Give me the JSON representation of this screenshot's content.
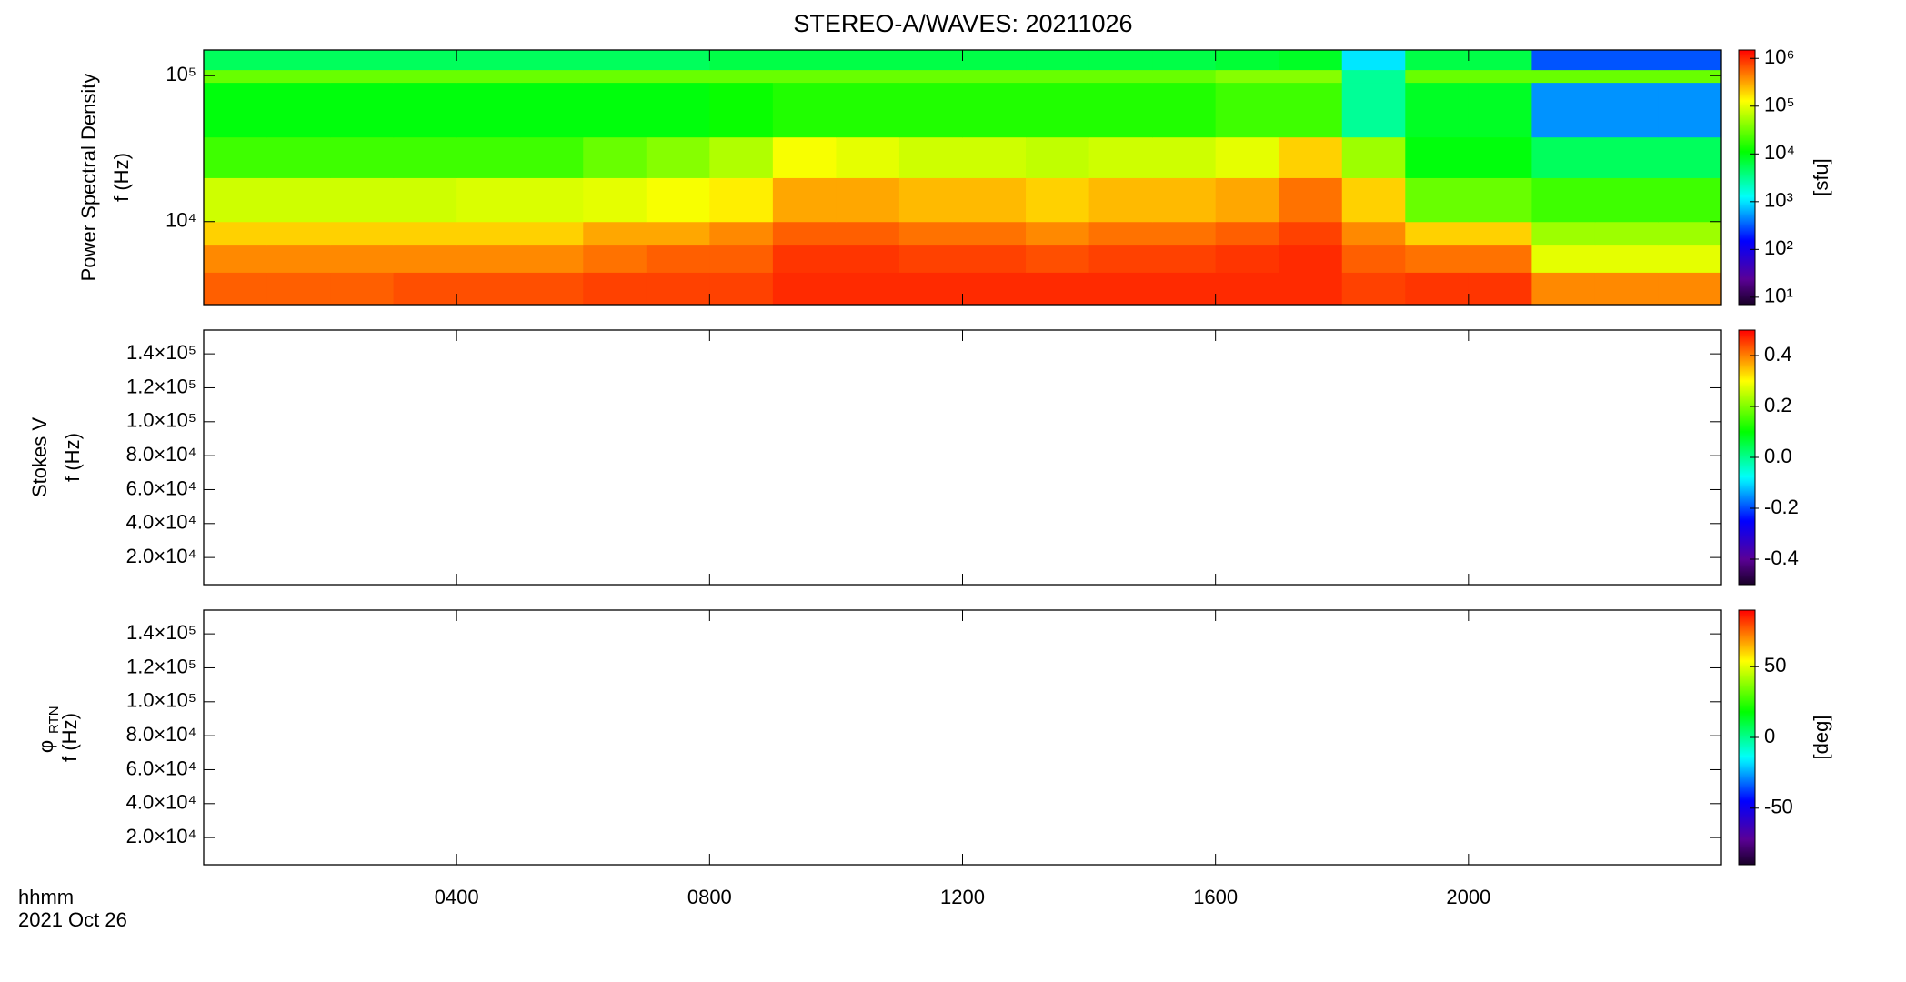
{
  "title": "STEREO-A/WAVES: 20211026",
  "x_axis": {
    "xlim": [
      0,
      24
    ],
    "xticks": [
      {
        "value": 4,
        "label": "0400"
      },
      {
        "value": 8,
        "label": "0800"
      },
      {
        "value": 12,
        "label": "1200"
      },
      {
        "value": 16,
        "label": "1600"
      },
      {
        "value": 20,
        "label": "2000"
      }
    ],
    "label": [
      "hhmm",
      "2021 Oct 26"
    ]
  },
  "chart_data": [
    {
      "type": "heatmap",
      "ylabel": [
        "Power Spectral Density",
        "f (Hz)"
      ],
      "ylog": true,
      "ylim": [
        2700,
        150000
      ],
      "yticks": [
        {
          "value": 10000,
          "label": "10⁴"
        },
        {
          "value": 100000,
          "label": "10⁵"
        }
      ],
      "xbins": [
        0,
        1,
        2,
        3,
        4,
        5,
        6,
        7,
        8,
        9,
        10,
        11,
        12,
        13,
        14,
        15,
        16,
        17,
        18,
        19,
        20,
        21,
        22,
        23,
        24
      ],
      "ybins": [
        2700,
        4500,
        7000,
        10000,
        20000,
        38000,
        90000,
        110000,
        150000
      ],
      "z": [
        [
          600000,
          600000,
          600000,
          700000,
          700000,
          700000,
          800000,
          800000,
          800000,
          1000000,
          1000000,
          1000000,
          1000000,
          1000000,
          1000000,
          1000000,
          1000000,
          1000000,
          800000,
          900000,
          900000,
          400000,
          400000,
          400000
        ],
        [
          400000,
          400000,
          400000,
          400000,
          400000,
          400000,
          500000,
          600000,
          600000,
          900000,
          900000,
          800000,
          800000,
          700000,
          800000,
          800000,
          900000,
          1000000,
          600000,
          500000,
          500000,
          100000,
          100000,
          100000
        ],
        [
          200000,
          200000,
          200000,
          200000,
          200000,
          200000,
          300000,
          300000,
          400000,
          600000,
          600000,
          500000,
          500000,
          400000,
          500000,
          500000,
          600000,
          800000,
          400000,
          200000,
          200000,
          50000,
          50000,
          50000
        ],
        [
          80000,
          80000,
          80000,
          80000,
          90000,
          90000,
          100000,
          120000,
          150000,
          300000,
          300000,
          250000,
          250000,
          200000,
          250000,
          250000,
          300000,
          500000,
          200000,
          30000,
          30000,
          20000,
          20000,
          20000
        ],
        [
          20000,
          20000,
          20000,
          20000,
          20000,
          20000,
          30000,
          40000,
          60000,
          120000,
          100000,
          80000,
          80000,
          70000,
          80000,
          80000,
          100000,
          200000,
          50000,
          10000,
          10000,
          5000,
          5000,
          5000
        ],
        [
          10000,
          10000,
          10000,
          10000,
          10000,
          10000,
          10000,
          10000,
          12000,
          15000,
          15000,
          15000,
          15000,
          15000,
          15000,
          15000,
          20000,
          20000,
          3000,
          8000,
          8000,
          500,
          500,
          500
        ],
        [
          30000,
          30000,
          30000,
          30000,
          30000,
          30000,
          30000,
          30000,
          30000,
          30000,
          30000,
          30000,
          30000,
          30000,
          30000,
          30000,
          40000,
          40000,
          3000,
          30000,
          30000,
          30000,
          30000,
          30000
        ],
        [
          5000,
          5000,
          5000,
          5000,
          5000,
          5000,
          5000,
          5000,
          6000,
          6000,
          6000,
          6000,
          6000,
          6000,
          6000,
          6000,
          7000,
          8000,
          1000,
          6000,
          6000,
          300,
          300,
          300
        ]
      ],
      "colorbar": {
        "log": true,
        "lim": [
          7,
          1500000
        ],
        "ticks": [
          {
            "value": 10,
            "label": "10¹"
          },
          {
            "value": 100,
            "label": "10²"
          },
          {
            "value": 1000,
            "label": "10³"
          },
          {
            "value": 10000,
            "label": "10⁴"
          },
          {
            "value": 100000,
            "label": "10⁵"
          },
          {
            "value": 1000000,
            "label": "10⁶"
          }
        ],
        "label": "[sfu]"
      }
    },
    {
      "type": "heatmap",
      "ylabel": [
        "Stokes V",
        "f (Hz)"
      ],
      "ylog": false,
      "ylim": [
        4000,
        154000
      ],
      "yticks": [
        {
          "value": 20000,
          "label": "2.0×10⁴"
        },
        {
          "value": 40000,
          "label": "4.0×10⁴"
        },
        {
          "value": 60000,
          "label": "6.0×10⁴"
        },
        {
          "value": 80000,
          "label": "8.0×10⁴"
        },
        {
          "value": 100000,
          "label": "1.0×10⁵"
        },
        {
          "value": 120000,
          "label": "1.2×10⁵"
        },
        {
          "value": 140000,
          "label": "1.4×10⁵"
        }
      ],
      "colorbar": {
        "log": false,
        "lim": [
          -0.5,
          0.5
        ],
        "ticks": [
          -0.4,
          -0.2,
          {
            "value": 0,
            "label": "0.0"
          },
          0.2,
          0.4
        ]
      }
    },
    {
      "type": "heatmap",
      "ylabel": [
        "φ",
        "f (Hz)"
      ],
      "ylabel_sub": "RTN",
      "ylog": false,
      "ylim": [
        4000,
        154000
      ],
      "yticks": [
        {
          "value": 20000,
          "label": "2.0×10⁴"
        },
        {
          "value": 40000,
          "label": "4.0×10⁴"
        },
        {
          "value": 60000,
          "label": "6.0×10⁴"
        },
        {
          "value": 80000,
          "label": "8.0×10⁴"
        },
        {
          "value": 100000,
          "label": "1.0×10⁵"
        },
        {
          "value": 120000,
          "label": "1.2×10⁵"
        },
        {
          "value": 140000,
          "label": "1.4×10⁵"
        }
      ],
      "colorbar": {
        "log": false,
        "lim": [
          -90,
          90
        ],
        "ticks": [
          -50,
          0,
          50
        ],
        "label": "[deg]"
      }
    }
  ]
}
